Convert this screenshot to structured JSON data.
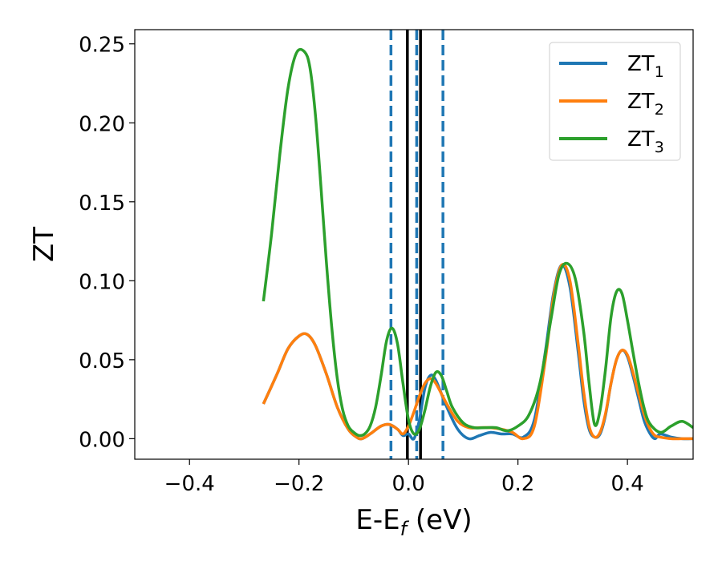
{
  "chart_data": {
    "type": "line",
    "title": "",
    "xlabel": "E-E",
    "xlabel_sub": "f",
    "xlabel_suffix": " (eV)",
    "ylabel": "ZT",
    "xlim": [
      -0.5,
      0.52
    ],
    "ylim": [
      -0.013,
      0.259
    ],
    "x_ticks": [
      -0.4,
      -0.2,
      0.0,
      0.2,
      0.4
    ],
    "x_tick_labels": [
      "−0.4",
      "−0.2",
      "0.0",
      "0.2",
      "0.4"
    ],
    "y_ticks": [
      0.0,
      0.05,
      0.1,
      0.15,
      0.2,
      0.25
    ],
    "y_tick_labels": [
      "0.00",
      "0.05",
      "0.10",
      "0.15",
      "0.20",
      "0.25"
    ],
    "grid": false,
    "legend_position": "top-right",
    "vertical_lines": [
      {
        "x": -0.032,
        "style": "dashed",
        "color": "#1f77b4"
      },
      {
        "x": 0.015,
        "style": "dashed",
        "color": "#1f77b4"
      },
      {
        "x": 0.063,
        "style": "dashed",
        "color": "#1f77b4"
      },
      {
        "x": -0.002,
        "style": "solid",
        "color": "#000000"
      },
      {
        "x": 0.022,
        "style": "solid",
        "color": "#000000"
      }
    ],
    "series": [
      {
        "name": "ZT",
        "name_sub": "1",
        "color": "#1f77b4",
        "x": [
          -0.265,
          -0.24,
          -0.22,
          -0.2,
          -0.185,
          -0.17,
          -0.15,
          -0.13,
          -0.11,
          -0.095,
          -0.085,
          -0.07,
          -0.05,
          -0.035,
          -0.02,
          -0.01,
          0.0,
          0.01,
          0.02,
          0.03,
          0.04,
          0.05,
          0.07,
          0.09,
          0.11,
          0.13,
          0.15,
          0.17,
          0.19,
          0.21,
          0.23,
          0.25,
          0.265,
          0.28,
          0.295,
          0.31,
          0.32,
          0.33,
          0.34,
          0.35,
          0.36,
          0.37,
          0.38,
          0.39,
          0.4,
          0.41,
          0.42,
          0.43,
          0.44,
          0.45,
          0.46,
          0.48,
          0.5,
          0.52
        ],
        "y": [
          0.022,
          0.041,
          0.057,
          0.065,
          0.066,
          0.059,
          0.041,
          0.02,
          0.006,
          0.001,
          0.0,
          0.003,
          0.008,
          0.009,
          0.006,
          0.002,
          0.003,
          0.0,
          0.012,
          0.032,
          0.04,
          0.037,
          0.02,
          0.006,
          0.0,
          0.002,
          0.004,
          0.003,
          0.003,
          0.001,
          0.012,
          0.055,
          0.092,
          0.11,
          0.096,
          0.055,
          0.025,
          0.006,
          0.001,
          0.003,
          0.015,
          0.035,
          0.05,
          0.056,
          0.052,
          0.04,
          0.026,
          0.012,
          0.004,
          0.0,
          0.003,
          0.001,
          0.0,
          0.0
        ]
      },
      {
        "name": "ZT",
        "name_sub": "2",
        "color": "#ff7f0e",
        "x": [
          -0.265,
          -0.24,
          -0.22,
          -0.2,
          -0.185,
          -0.17,
          -0.15,
          -0.13,
          -0.11,
          -0.095,
          -0.085,
          -0.07,
          -0.05,
          -0.035,
          -0.02,
          -0.01,
          0.0,
          0.01,
          0.02,
          0.03,
          0.04,
          0.05,
          0.07,
          0.09,
          0.11,
          0.13,
          0.15,
          0.17,
          0.19,
          0.21,
          0.23,
          0.25,
          0.265,
          0.28,
          0.295,
          0.31,
          0.32,
          0.33,
          0.34,
          0.35,
          0.36,
          0.37,
          0.38,
          0.39,
          0.4,
          0.41,
          0.42,
          0.43,
          0.44,
          0.45,
          0.46,
          0.48,
          0.5,
          0.52
        ],
        "y": [
          0.022,
          0.041,
          0.057,
          0.065,
          0.066,
          0.059,
          0.041,
          0.02,
          0.006,
          0.001,
          0.0,
          0.003,
          0.008,
          0.009,
          0.006,
          0.003,
          0.008,
          0.017,
          0.027,
          0.035,
          0.038,
          0.035,
          0.022,
          0.011,
          0.007,
          0.007,
          0.007,
          0.006,
          0.004,
          0.0,
          0.008,
          0.05,
          0.09,
          0.11,
          0.1,
          0.06,
          0.03,
          0.008,
          0.001,
          0.004,
          0.016,
          0.035,
          0.05,
          0.056,
          0.053,
          0.042,
          0.029,
          0.016,
          0.007,
          0.002,
          0.001,
          0.0,
          0.0,
          0.0
        ]
      },
      {
        "name": "ZT",
        "name_sub": "3",
        "color": "#2ca02c",
        "x": [
          -0.265,
          -0.25,
          -0.235,
          -0.22,
          -0.205,
          -0.19,
          -0.18,
          -0.17,
          -0.16,
          -0.15,
          -0.14,
          -0.13,
          -0.12,
          -0.11,
          -0.1,
          -0.09,
          -0.08,
          -0.07,
          -0.06,
          -0.05,
          -0.04,
          -0.03,
          -0.02,
          -0.01,
          0.0,
          0.01,
          0.02,
          0.03,
          0.04,
          0.05,
          0.06,
          0.07,
          0.08,
          0.1,
          0.12,
          0.14,
          0.16,
          0.18,
          0.2,
          0.22,
          0.24,
          0.26,
          0.275,
          0.29,
          0.305,
          0.32,
          0.33,
          0.34,
          0.35,
          0.36,
          0.37,
          0.38,
          0.39,
          0.4,
          0.41,
          0.42,
          0.43,
          0.44,
          0.46,
          0.48,
          0.5,
          0.52
        ],
        "y": [
          0.087,
          0.13,
          0.18,
          0.222,
          0.244,
          0.245,
          0.235,
          0.205,
          0.16,
          0.112,
          0.07,
          0.038,
          0.018,
          0.008,
          0.004,
          0.002,
          0.003,
          0.008,
          0.02,
          0.04,
          0.062,
          0.07,
          0.06,
          0.035,
          0.012,
          0.003,
          0.006,
          0.018,
          0.033,
          0.042,
          0.04,
          0.03,
          0.02,
          0.01,
          0.007,
          0.007,
          0.007,
          0.005,
          0.008,
          0.015,
          0.035,
          0.075,
          0.104,
          0.111,
          0.101,
          0.068,
          0.035,
          0.009,
          0.018,
          0.044,
          0.077,
          0.093,
          0.092,
          0.075,
          0.055,
          0.036,
          0.02,
          0.01,
          0.004,
          0.008,
          0.011,
          0.007
        ]
      }
    ]
  }
}
